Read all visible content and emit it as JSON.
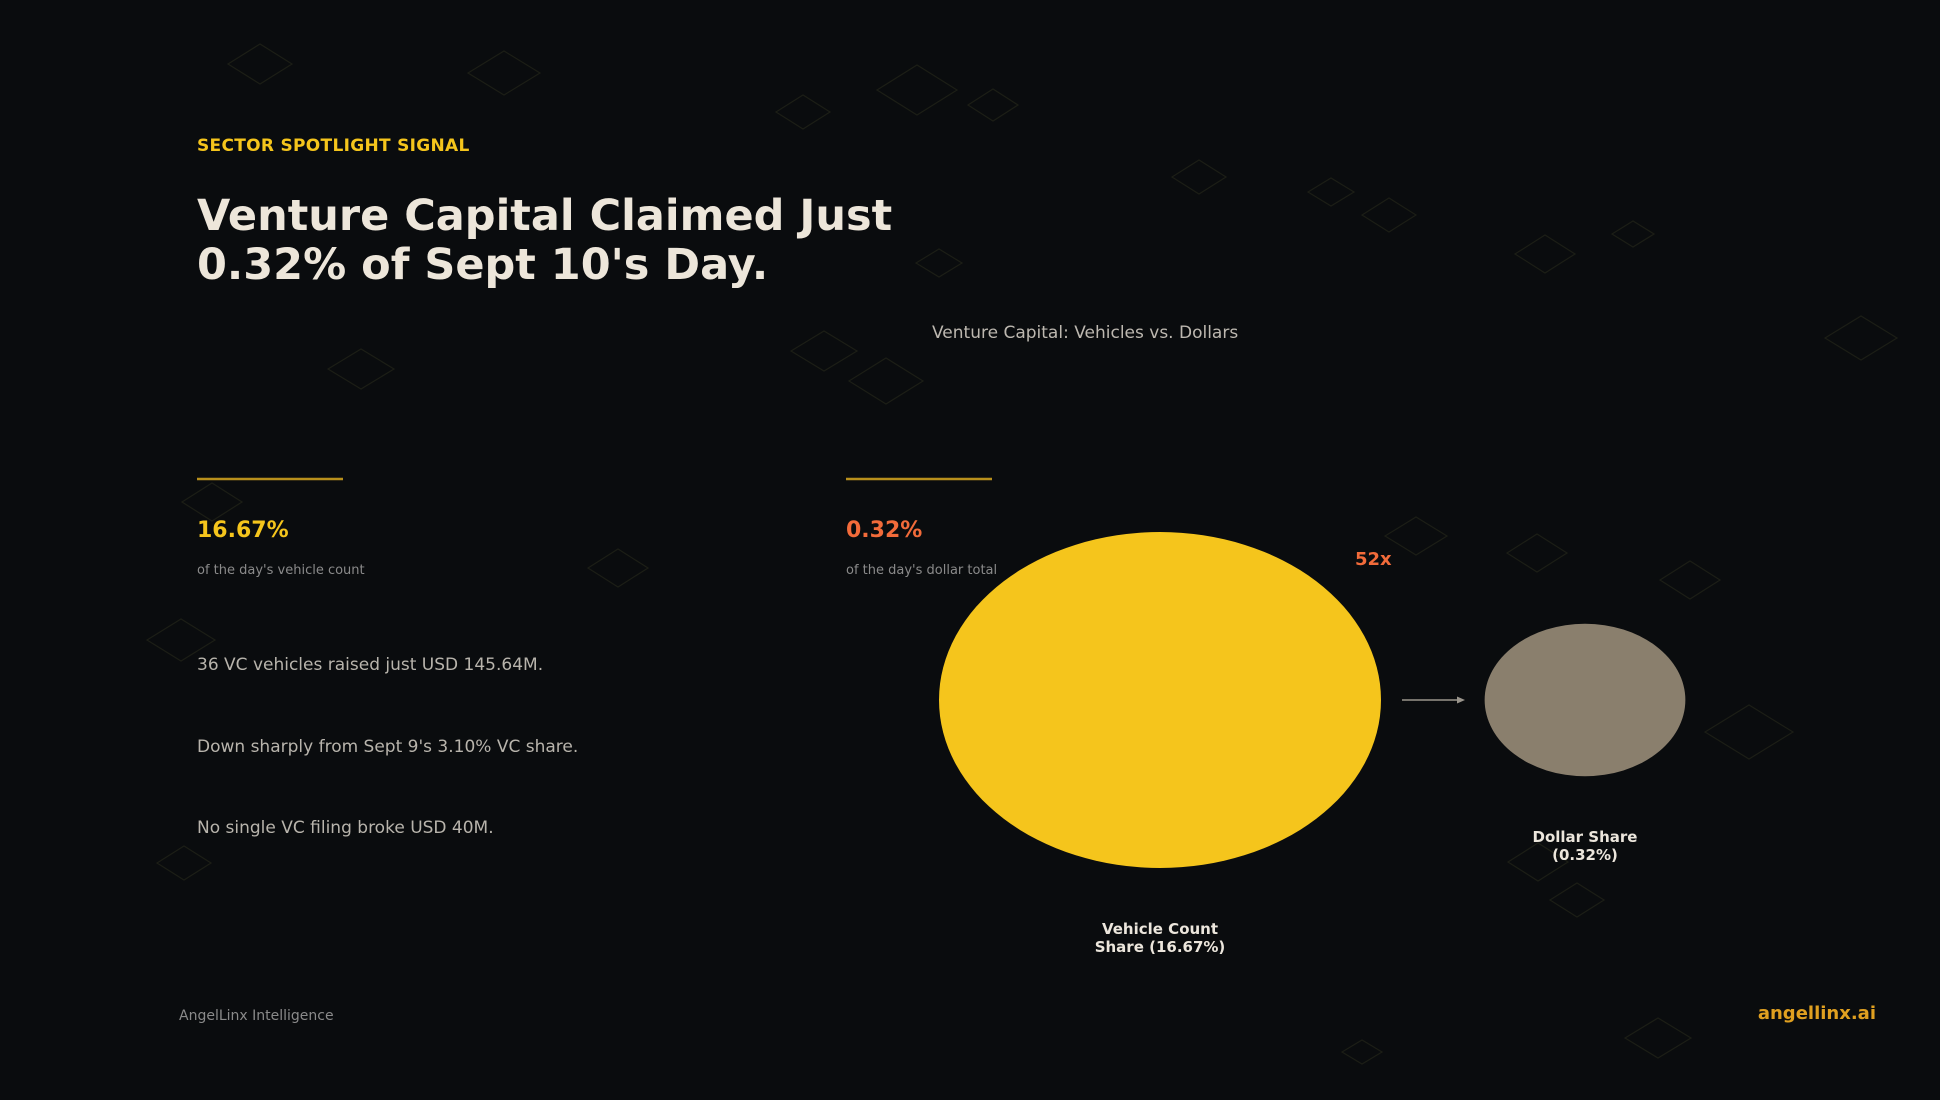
{
  "header": {
    "kicker": "SECTOR SPOTLIGHT SIGNAL",
    "title": "Venture Capital Claimed Just 0.32% of Sept 10's Day."
  },
  "stats": [
    {
      "value": "16.67%",
      "label": "of the day's vehicle count"
    },
    {
      "value": "0.32%",
      "label": "of the day's dollar total"
    }
  ],
  "bullets": [
    "36 VC vehicles raised just USD 145.64M.",
    "Down sharply from Sept 9's 3.10% VC share.",
    "No single VC filing broke USD 40M."
  ],
  "chart_data": {
    "type": "bubble",
    "title": "Venture Capital: Vehicles vs. Dollars",
    "categories": [
      "Vehicle Count Share (16.67%)",
      "Dollar Share (0.32%)"
    ],
    "values": [
      16.67,
      0.32
    ],
    "colors": [
      "#f5c51c",
      "#8a7f6d"
    ],
    "annotation": "52x"
  },
  "footer": {
    "left": "AngelLinx Intelligence",
    "right": "angellinx.ai"
  }
}
